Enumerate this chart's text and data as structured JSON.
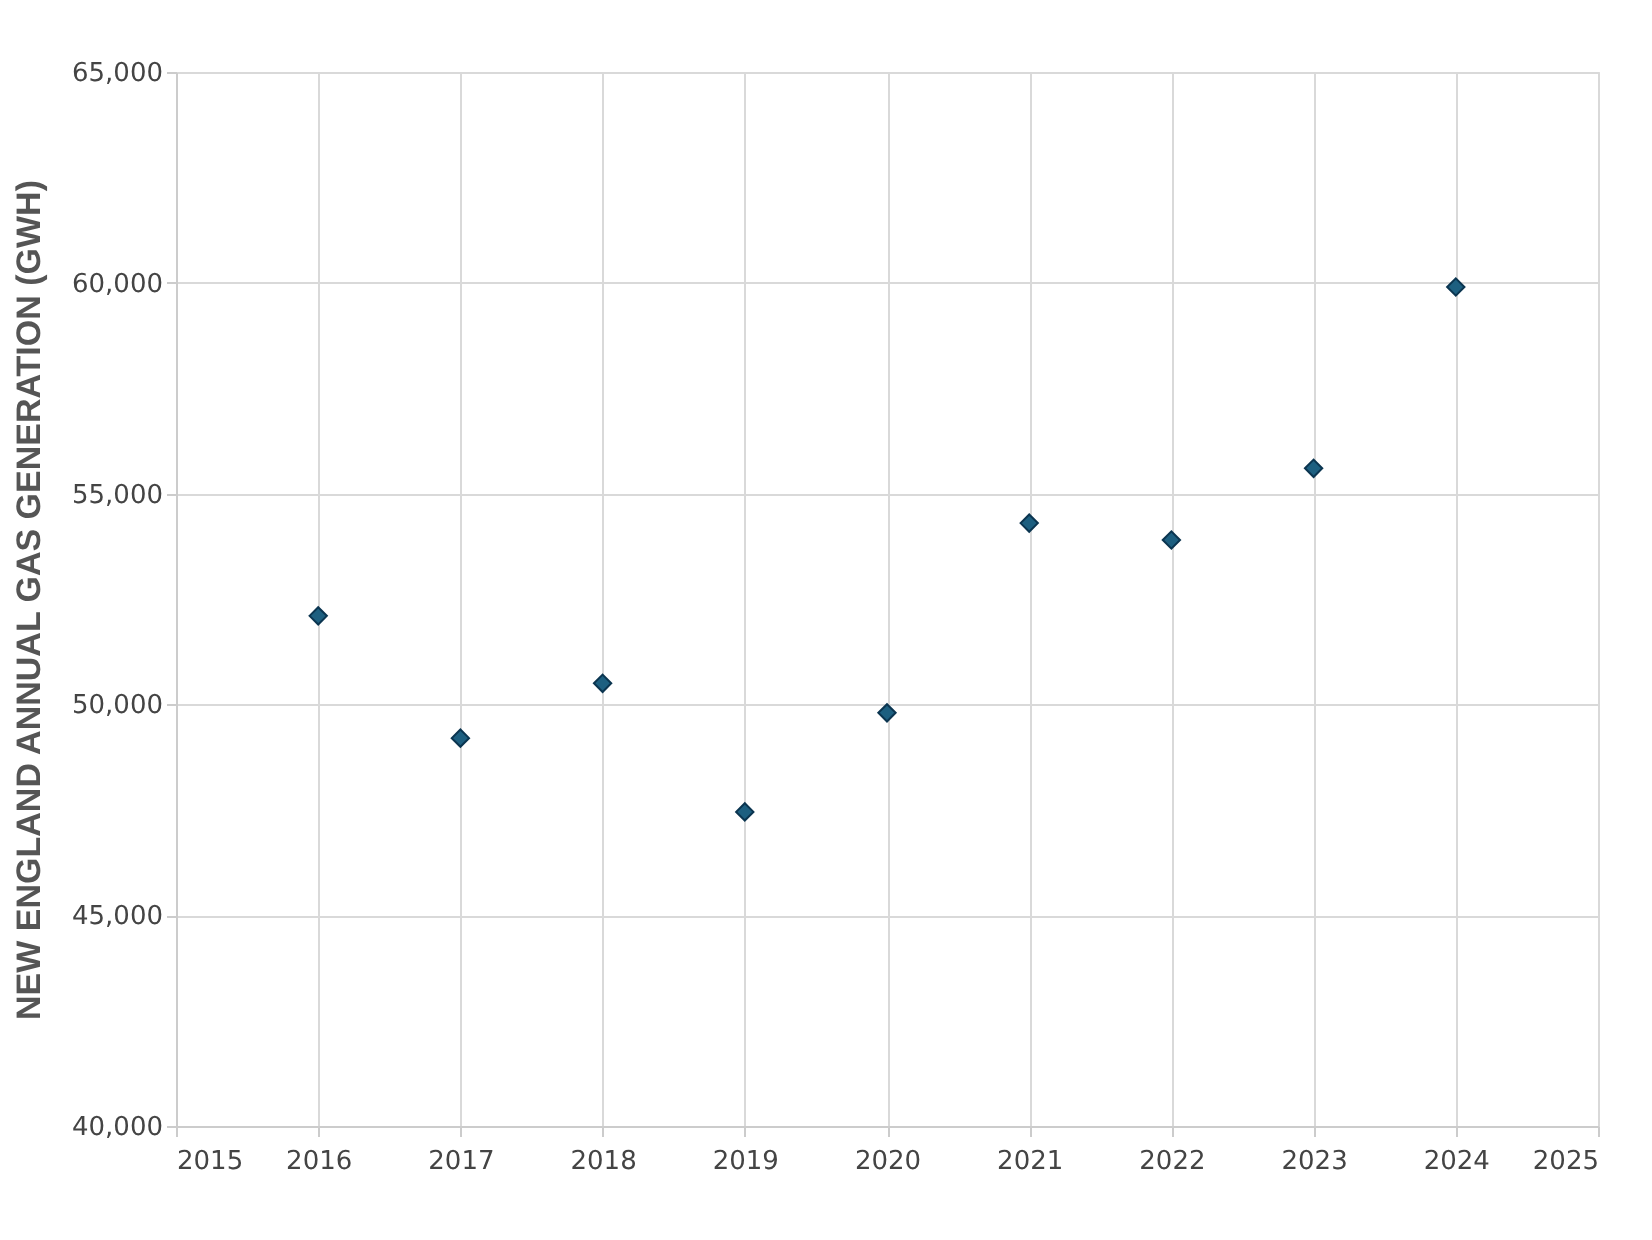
{
  "chart_data": {
    "type": "scatter",
    "ylabel": "NEW ENGLAND ANNUAL GAS GENERATION (GWH)",
    "x": [
      2016,
      2017,
      2018,
      2019,
      2020,
      2021,
      2022,
      2023,
      2024
    ],
    "series": [
      {
        "color": "#1d5f80",
        "values": [
          52100,
          49200,
          50500,
          47450,
          49800,
          54300,
          53900,
          55600,
          59900
        ]
      }
    ],
    "xlim": [
      2015,
      2025
    ],
    "xticks": [
      2015,
      2016,
      2017,
      2018,
      2019,
      2020,
      2021,
      2022,
      2023,
      2024,
      2025
    ],
    "ylim": [
      40000,
      65000
    ],
    "yticks": [
      {
        "value": 40000,
        "label": "40,000"
      },
      {
        "value": 45000,
        "label": "45,000"
      },
      {
        "value": 50000,
        "label": "50,000"
      },
      {
        "value": 55000,
        "label": "55,000"
      },
      {
        "value": 60000,
        "label": "60,000"
      },
      {
        "value": 65000,
        "label": "65,000"
      }
    ],
    "grid": true,
    "marker": "diamond"
  }
}
